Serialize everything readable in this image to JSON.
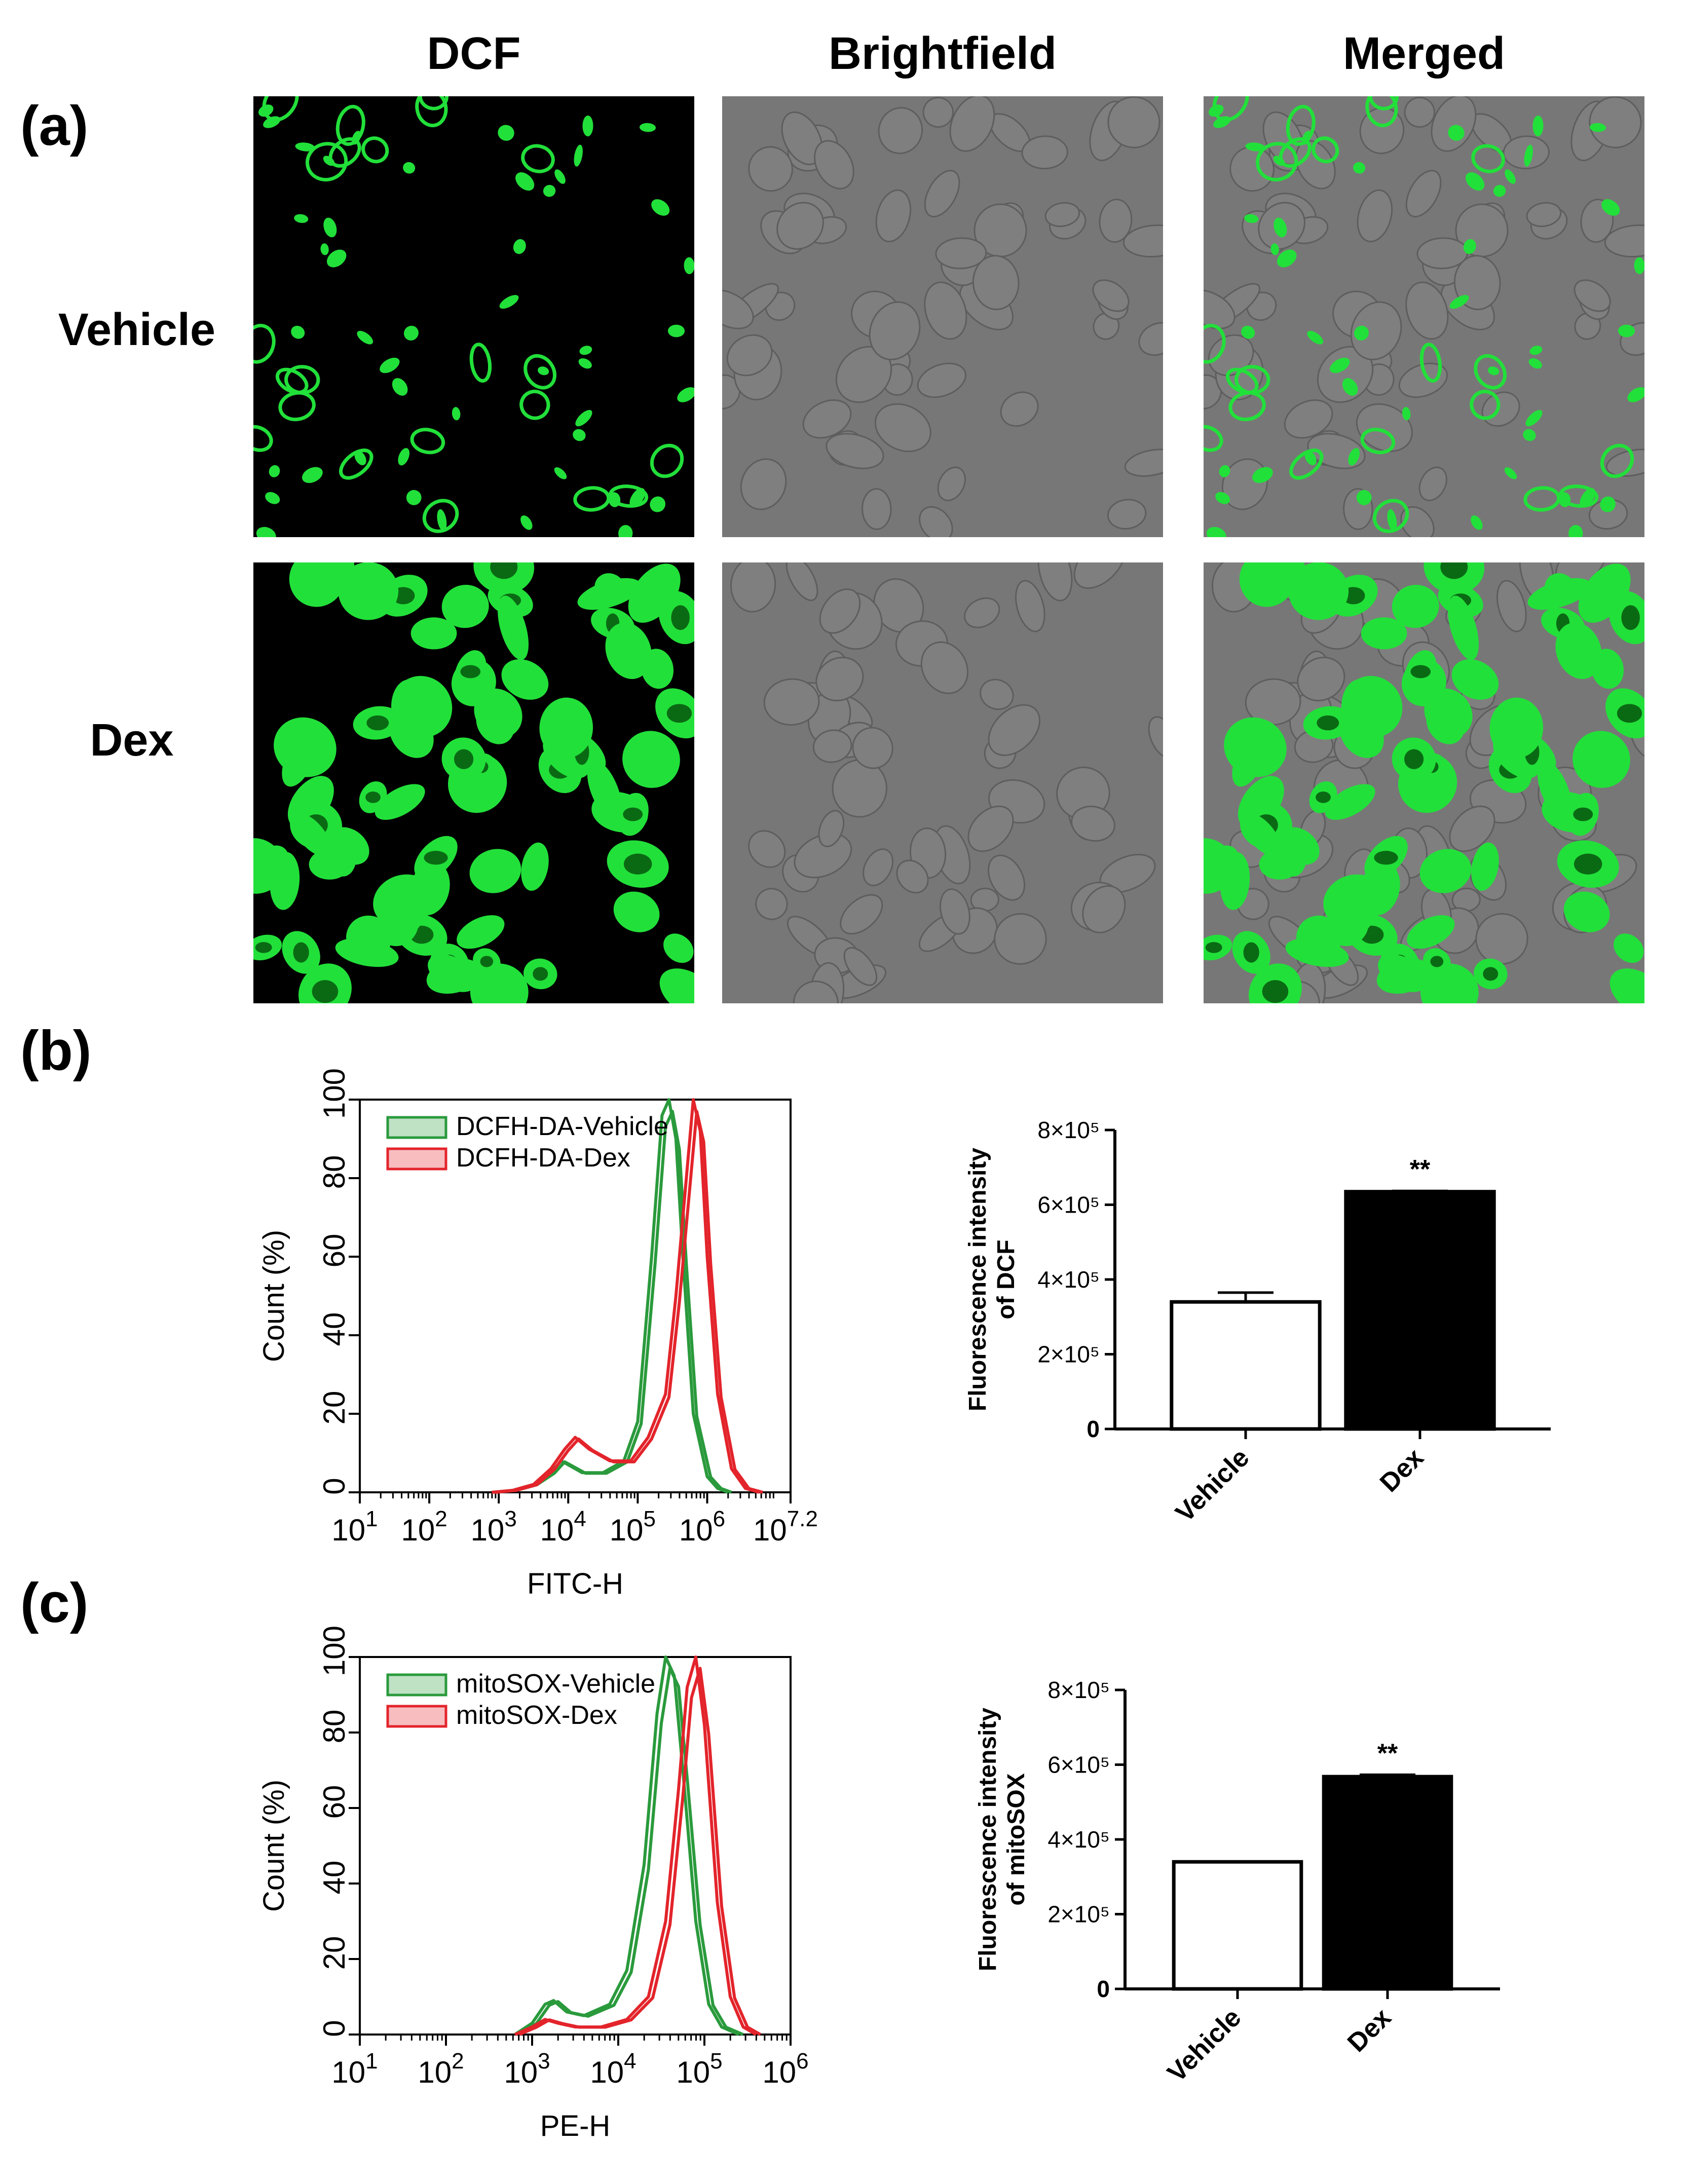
{
  "panels": {
    "a": "(a)",
    "b": "(b)",
    "c": "(c)"
  },
  "microscopy": {
    "columns": [
      "DCF",
      "Brightfield",
      "Merged"
    ],
    "rows": [
      "Vehicle",
      "Dex"
    ],
    "colors": {
      "fluor": "#22e03a",
      "dark": "#000000",
      "gray": "#777777"
    }
  },
  "chart_data": [
    {
      "id": "b-hist",
      "type": "line",
      "xlabel": "FITC-H",
      "ylabel": "Count (%)",
      "x_scale": "log10",
      "x_ticks": [
        "10^1",
        "10^2",
        "10^3",
        "10^4",
        "10^5",
        "10^6",
        "10^7.2"
      ],
      "x_tick_exponents": [
        1,
        2,
        3,
        4,
        5,
        6,
        7.2
      ],
      "xlim": [
        1,
        7.2
      ],
      "ylim": [
        0,
        100
      ],
      "y_ticks": [
        0,
        20,
        40,
        60,
        80,
        100
      ],
      "legend": "top-left",
      "series": [
        {
          "name": "DCFH-DA-Vehicle",
          "color": "#2a9a3c",
          "log_x": [
            2.9,
            3.2,
            3.5,
            3.75,
            3.9,
            4.0,
            4.2,
            4.5,
            4.8,
            5.0,
            5.2,
            5.35,
            5.45,
            5.55,
            5.65,
            5.8,
            6.0,
            6.15,
            6.3
          ],
          "y": [
            0,
            0.5,
            2,
            5,
            8,
            7,
            5,
            5,
            8,
            18,
            60,
            96,
            100,
            90,
            60,
            20,
            4,
            1,
            0
          ]
        },
        {
          "name": "DCFH-DA-Dex",
          "color": "#e3242b",
          "log_x": [
            2.9,
            3.2,
            3.5,
            3.75,
            3.95,
            4.1,
            4.3,
            4.6,
            4.9,
            5.15,
            5.4,
            5.55,
            5.7,
            5.8,
            5.9,
            6.0,
            6.15,
            6.35,
            6.55,
            6.75
          ],
          "y": [
            0,
            0.5,
            2,
            6,
            11,
            14,
            11,
            8,
            8,
            14,
            25,
            50,
            80,
            100,
            92,
            60,
            25,
            6,
            1,
            0
          ]
        }
      ]
    },
    {
      "id": "b-bar",
      "type": "bar",
      "ylabel": "Fluorescence intensity of DCF",
      "categories": [
        "Vehicle",
        "Dex"
      ],
      "values": [
        340000,
        635000
      ],
      "errors": [
        25000,
        2000
      ],
      "fills": [
        "#ffffff",
        "#000000"
      ],
      "significance": [
        "",
        "**"
      ],
      "ylim": [
        0,
        800000
      ],
      "y_ticks": [
        "0",
        "2×10⁵",
        "4×10⁵",
        "6×10⁵",
        "8×10⁵"
      ],
      "y_tick_values": [
        0,
        200000,
        400000,
        600000,
        800000
      ]
    },
    {
      "id": "c-hist",
      "type": "line",
      "xlabel": "PE-H",
      "ylabel": "Count (%)",
      "x_scale": "log10",
      "x_ticks": [
        "10^1",
        "10^2",
        "10^3",
        "10^4",
        "10^5",
        "10^6"
      ],
      "x_tick_exponents": [
        1,
        2,
        3,
        4,
        5,
        6
      ],
      "xlim": [
        1,
        6
      ],
      "ylim": [
        0,
        100
      ],
      "y_ticks": [
        0,
        20,
        40,
        60,
        80,
        100
      ],
      "legend": "top-left",
      "series": [
        {
          "name": "mitoSOX-Vehicle",
          "color": "#2a9a3c",
          "log_x": [
            2.8,
            3.0,
            3.15,
            3.25,
            3.4,
            3.6,
            3.9,
            4.1,
            4.3,
            4.45,
            4.55,
            4.65,
            4.75,
            4.9,
            5.05,
            5.2,
            5.4
          ],
          "y": [
            0,
            3,
            8,
            9,
            6,
            5,
            8,
            17,
            45,
            85,
            100,
            95,
            70,
            30,
            8,
            2,
            0
          ]
        },
        {
          "name": "mitoSOX-Dex",
          "color": "#e3242b",
          "log_x": [
            2.8,
            3.0,
            3.15,
            3.3,
            3.5,
            3.8,
            4.1,
            4.35,
            4.55,
            4.7,
            4.8,
            4.9,
            5.0,
            5.15,
            5.3,
            5.45,
            5.6
          ],
          "y": [
            0,
            2,
            4,
            3,
            2,
            2,
            4,
            10,
            30,
            65,
            92,
            100,
            82,
            35,
            10,
            2,
            0
          ]
        }
      ]
    },
    {
      "id": "c-bar",
      "type": "bar",
      "ylabel": "Fluorescence intensity of mitoSOX",
      "categories": [
        "Vehicle",
        "Dex"
      ],
      "values": [
        340000,
        568000
      ],
      "errors": [
        0,
        5000
      ],
      "fills": [
        "#ffffff",
        "#000000"
      ],
      "significance": [
        "",
        "**"
      ],
      "ylim": [
        0,
        800000
      ],
      "y_ticks": [
        "0",
        "2×10⁵",
        "4×10⁵",
        "6×10⁵",
        "8×10⁵"
      ],
      "y_tick_values": [
        0,
        200000,
        400000,
        600000,
        800000
      ]
    }
  ]
}
